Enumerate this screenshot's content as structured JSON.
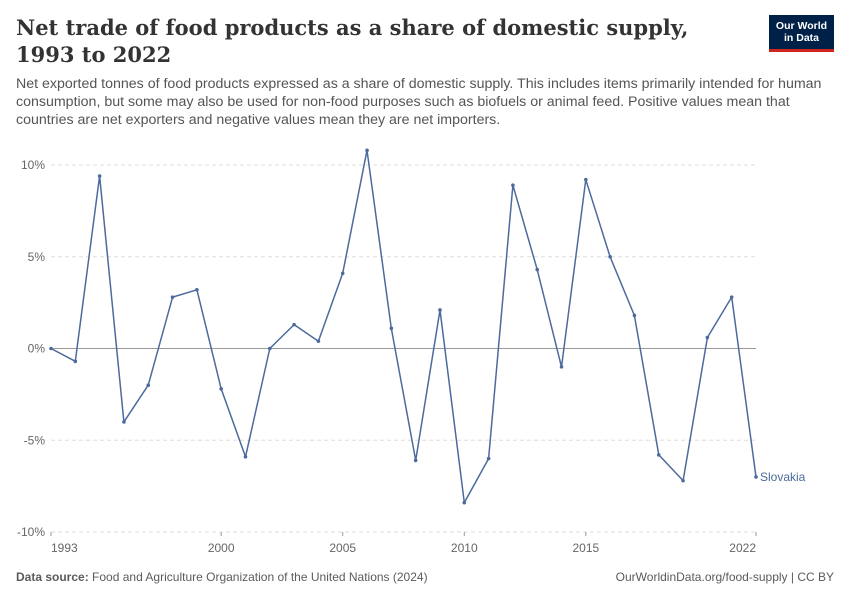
{
  "header": {
    "title": "Net trade of food products as a share of domestic supply, 1993 to 2022",
    "subtitle": "Net exported tonnes of food products expressed as a share of domestic supply. This includes items primarily intended for human consumption, but some may also be used for non-food purposes such as biofuels or animal feed. Positive values mean that countries are net exporters and negative values mean they are net importers."
  },
  "logo": {
    "line1": "Our World",
    "line2": "in Data"
  },
  "footer": {
    "source_label": "Data source:",
    "source_text": "Food and Agriculture Organization of the United Nations (2024)",
    "credit": "OurWorldinData.org/food-supply | CC BY"
  },
  "colors": {
    "series": "#4c6a9c",
    "grid": "#dddddd",
    "zero_line": "#9a9a9a",
    "brand": "#002147",
    "brand_accent": "#ce261e"
  },
  "chart_data": {
    "type": "line",
    "title": "Net trade of food products as a share of domestic supply, 1993 to 2022",
    "xlabel": "",
    "ylabel": "",
    "xlim": [
      1993,
      2022
    ],
    "ylim": [
      -10,
      10
    ],
    "x_ticks": [
      1993,
      2000,
      2005,
      2010,
      2015,
      2022
    ],
    "y_ticks": [
      -10,
      -5,
      0,
      5,
      10
    ],
    "y_tick_labels": [
      "-10%",
      "-5%",
      "0%",
      "5%",
      "10%"
    ],
    "grid": "horizontal dashed",
    "series": [
      {
        "name": "Slovakia",
        "x": [
          1993,
          1994,
          1995,
          1996,
          1997,
          1998,
          1999,
          2000,
          2001,
          2002,
          2003,
          2004,
          2005,
          2006,
          2007,
          2008,
          2009,
          2010,
          2011,
          2012,
          2013,
          2014,
          2015,
          2016,
          2017,
          2018,
          2019,
          2020,
          2021,
          2022
        ],
        "values": [
          0.0,
          -0.7,
          9.4,
          -4.0,
          -2.0,
          2.8,
          3.2,
          -2.2,
          -5.9,
          0.0,
          1.3,
          0.4,
          4.1,
          10.8,
          1.1,
          -6.1,
          2.1,
          -8.4,
          -6.0,
          8.9,
          4.3,
          -1.0,
          9.2,
          5.0,
          1.8,
          -5.8,
          -7.2,
          0.6,
          2.8,
          -7.0
        ]
      }
    ]
  }
}
